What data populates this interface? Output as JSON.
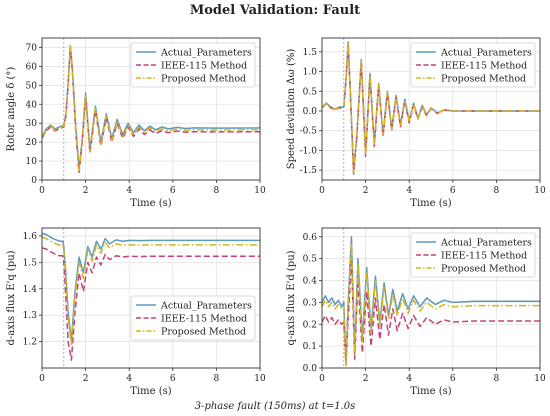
{
  "title": "Model Validation: Fault",
  "caption": "3-phase fault (150ms) at t=1.0s",
  "colors": {
    "actual": "#5b9bbf",
    "ieee": "#c4427a",
    "proposed": "#d7b41c",
    "fault_line": "#8aa0c8"
  },
  "chart_data": [
    {
      "type": "line",
      "id": "rotor",
      "ylabel": "Rotor angle δ (°)",
      "xlabel": "Time (s)",
      "xlim": [
        0,
        10
      ],
      "ylim": [
        0,
        75
      ],
      "xticks": [
        0,
        2,
        4,
        6,
        8,
        10
      ],
      "yticks": [
        0,
        10,
        20,
        30,
        40,
        50,
        60,
        70
      ],
      "grid": true,
      "legend_position": "top-right",
      "fault_time": 1.0,
      "series": [
        {
          "name": "Actual_Parameters",
          "style": "solid",
          "color": "actual",
          "x": [
            0,
            0.2,
            0.4,
            0.6,
            0.8,
            1.0,
            1.1,
            1.2,
            1.3,
            1.4,
            1.55,
            1.7,
            1.85,
            2.0,
            2.2,
            2.45,
            2.7,
            2.95,
            3.2,
            3.45,
            3.7,
            3.95,
            4.2,
            4.45,
            4.7,
            4.95,
            5.2,
            5.5,
            5.8,
            6.2,
            6.6,
            7.0,
            8.0,
            10.0
          ],
          "y": [
            23,
            27,
            29,
            27,
            28,
            29,
            35,
            52,
            71,
            58,
            28,
            6,
            22,
            46,
            16,
            39,
            20,
            35,
            22,
            32,
            24,
            30,
            25,
            29,
            26,
            28.5,
            26.5,
            28,
            27,
            27.8,
            27.2,
            27.5,
            27.4,
            27.5
          ]
        },
        {
          "name": "IEEE-115 Method",
          "style": "dashed",
          "color": "ieee",
          "x": [
            0,
            0.2,
            0.4,
            0.6,
            0.8,
            1.0,
            1.1,
            1.2,
            1.3,
            1.4,
            1.55,
            1.7,
            1.85,
            2.0,
            2.2,
            2.45,
            2.7,
            2.95,
            3.2,
            3.45,
            3.7,
            3.95,
            4.2,
            4.45,
            4.7,
            4.95,
            5.2,
            5.5,
            5.8,
            6.2,
            6.6,
            7.0,
            8.0,
            10.0
          ],
          "y": [
            22,
            26,
            28,
            26,
            27,
            28,
            34,
            50,
            70,
            56,
            25,
            4,
            20,
            44,
            14,
            37,
            18,
            33,
            20,
            30,
            22,
            28,
            23,
            27,
            24,
            26.5,
            24.5,
            26,
            25,
            25.8,
            25.2,
            25.5,
            25.4,
            25.5
          ]
        },
        {
          "name": "Proposed Method",
          "style": "dashdot",
          "color": "proposed",
          "x": [
            0,
            0.2,
            0.4,
            0.6,
            0.8,
            1.0,
            1.1,
            1.2,
            1.3,
            1.4,
            1.55,
            1.7,
            1.85,
            2.0,
            2.2,
            2.45,
            2.7,
            2.95,
            3.2,
            3.45,
            3.7,
            3.95,
            4.2,
            4.45,
            4.7,
            4.95,
            5.2,
            5.5,
            5.8,
            6.2,
            6.6,
            7.0,
            8.0,
            10.0
          ],
          "y": [
            22.5,
            26.5,
            28.5,
            26.5,
            27.5,
            28.5,
            34.5,
            51,
            70.5,
            57,
            26.5,
            5,
            21,
            45,
            15,
            38,
            19,
            34,
            21,
            31,
            23,
            29,
            24,
            28,
            25,
            27.5,
            25.5,
            27,
            26,
            26.8,
            26.2,
            26.5,
            26.4,
            26.5
          ]
        }
      ]
    },
    {
      "type": "line",
      "id": "speed",
      "ylabel": "Speed deviation Δω (%)",
      "xlabel": "Time (s)",
      "xlim": [
        0,
        10
      ],
      "ylim": [
        -1.75,
        1.85
      ],
      "xticks": [
        0,
        2,
        4,
        6,
        8,
        10
      ],
      "yticks": [
        -1.5,
        -1.0,
        -0.5,
        0.0,
        0.5,
        1.0,
        1.5
      ],
      "grid": true,
      "legend_position": "top-right",
      "fault_time": 1.0,
      "series": [
        {
          "name": "Actual_Parameters",
          "style": "solid",
          "color": "actual",
          "x": [
            0,
            0.2,
            0.4,
            0.6,
            0.8,
            1.0,
            1.1,
            1.2,
            1.3,
            1.45,
            1.6,
            1.8,
            2.0,
            2.2,
            2.4,
            2.6,
            2.8,
            3.0,
            3.2,
            3.4,
            3.6,
            3.8,
            4.0,
            4.2,
            4.4,
            4.6,
            4.8,
            5.0,
            5.3,
            5.6,
            6.0,
            7.0,
            10.0
          ],
          "y": [
            0.1,
            0.2,
            0.1,
            0.05,
            0.1,
            0.1,
            0.8,
            1.75,
            0.5,
            -1.55,
            -0.6,
            1.3,
            -1.1,
            0.95,
            -0.85,
            0.7,
            -0.6,
            0.5,
            -0.45,
            0.4,
            -0.35,
            0.3,
            -0.25,
            0.2,
            -0.18,
            0.14,
            -0.1,
            0.08,
            -0.05,
            0.03,
            0.0,
            0.0,
            0.0
          ]
        },
        {
          "name": "IEEE-115 Method",
          "style": "dashed",
          "color": "ieee",
          "x": [
            0,
            0.2,
            0.4,
            0.6,
            0.8,
            1.0,
            1.1,
            1.2,
            1.3,
            1.45,
            1.6,
            1.8,
            2.0,
            2.2,
            2.4,
            2.6,
            2.8,
            3.0,
            3.2,
            3.4,
            3.6,
            3.8,
            4.0,
            4.2,
            4.4,
            4.6,
            4.8,
            5.0,
            5.3,
            5.6,
            6.0,
            7.0,
            10.0
          ],
          "y": [
            0.08,
            0.18,
            0.08,
            0.03,
            0.08,
            0.08,
            0.75,
            1.7,
            0.45,
            -1.6,
            -0.65,
            1.25,
            -1.15,
            0.9,
            -0.9,
            0.65,
            -0.65,
            0.45,
            -0.5,
            0.35,
            -0.4,
            0.25,
            -0.3,
            0.15,
            -0.2,
            0.1,
            -0.12,
            0.06,
            -0.06,
            0.02,
            0.0,
            0.0,
            0.0
          ]
        },
        {
          "name": "Proposed Method",
          "style": "dashdot",
          "color": "proposed",
          "x": [
            0,
            0.2,
            0.4,
            0.6,
            0.8,
            1.0,
            1.1,
            1.2,
            1.3,
            1.45,
            1.6,
            1.8,
            2.0,
            2.2,
            2.4,
            2.6,
            2.8,
            3.0,
            3.2,
            3.4,
            3.6,
            3.8,
            4.0,
            4.2,
            4.4,
            4.6,
            4.8,
            5.0,
            5.3,
            5.6,
            6.0,
            7.0,
            10.0
          ],
          "y": [
            0.09,
            0.19,
            0.09,
            0.04,
            0.09,
            0.09,
            0.78,
            1.72,
            0.48,
            -1.57,
            -0.62,
            1.28,
            -1.12,
            0.92,
            -0.87,
            0.68,
            -0.62,
            0.48,
            -0.47,
            0.38,
            -0.37,
            0.28,
            -0.27,
            0.18,
            -0.19,
            0.12,
            -0.11,
            0.07,
            -0.05,
            0.02,
            0.0,
            0.0,
            0.0
          ]
        }
      ]
    },
    {
      "type": "line",
      "id": "dflux",
      "ylabel": "d-axis flux E'q (pu)",
      "xlabel": "Time (s)",
      "xlim": [
        0,
        10
      ],
      "ylim": [
        1.1,
        1.63
      ],
      "xticks": [
        0,
        2,
        4,
        6,
        8,
        10
      ],
      "yticks": [
        1.2,
        1.3,
        1.4,
        1.5,
        1.6
      ],
      "grid": true,
      "legend_position": "center-right",
      "fault_time": 1.0,
      "series": [
        {
          "name": "Actual_Parameters",
          "style": "solid",
          "color": "actual",
          "x": [
            0,
            0.2,
            0.5,
            0.8,
            0.95,
            1.0,
            1.1,
            1.2,
            1.35,
            1.5,
            1.7,
            1.9,
            2.1,
            2.3,
            2.5,
            2.7,
            2.9,
            3.1,
            3.4,
            3.7,
            4.0,
            4.5,
            5.0,
            6.0,
            10.0
          ],
          "y": [
            1.61,
            1.605,
            1.59,
            1.58,
            1.58,
            1.56,
            1.45,
            1.31,
            1.2,
            1.38,
            1.52,
            1.46,
            1.56,
            1.52,
            1.58,
            1.55,
            1.59,
            1.57,
            1.585,
            1.58,
            1.583,
            1.582,
            1.583,
            1.583,
            1.583
          ]
        },
        {
          "name": "IEEE-115 Method",
          "style": "dashed",
          "color": "ieee",
          "x": [
            0,
            0.2,
            0.5,
            0.8,
            0.95,
            1.0,
            1.1,
            1.2,
            1.35,
            1.5,
            1.7,
            1.9,
            2.1,
            2.3,
            2.5,
            2.7,
            2.9,
            3.1,
            3.4,
            3.7,
            4.0,
            4.5,
            5.0,
            6.0,
            10.0
          ],
          "y": [
            1.555,
            1.55,
            1.535,
            1.525,
            1.525,
            1.5,
            1.36,
            1.2,
            1.13,
            1.3,
            1.46,
            1.39,
            1.5,
            1.46,
            1.52,
            1.49,
            1.53,
            1.51,
            1.525,
            1.52,
            1.523,
            1.522,
            1.523,
            1.523,
            1.523
          ]
        },
        {
          "name": "Proposed Method",
          "style": "dashdot",
          "color": "proposed",
          "x": [
            0,
            0.2,
            0.5,
            0.8,
            0.95,
            1.0,
            1.1,
            1.2,
            1.35,
            1.5,
            1.7,
            1.9,
            2.1,
            2.3,
            2.5,
            2.7,
            2.9,
            3.1,
            3.4,
            3.7,
            4.0,
            4.5,
            5.0,
            6.0,
            10.0
          ],
          "y": [
            1.595,
            1.59,
            1.575,
            1.565,
            1.565,
            1.545,
            1.43,
            1.29,
            1.19,
            1.36,
            1.5,
            1.44,
            1.545,
            1.505,
            1.565,
            1.535,
            1.575,
            1.555,
            1.57,
            1.565,
            1.566,
            1.565,
            1.566,
            1.566,
            1.566
          ]
        }
      ]
    },
    {
      "type": "line",
      "id": "qflux",
      "ylabel": "q-axis flux E'd (pu)",
      "xlabel": "Time (s)",
      "xlim": [
        0,
        10
      ],
      "ylim": [
        0,
        0.64
      ],
      "xticks": [
        0,
        2,
        4,
        6,
        8,
        10
      ],
      "yticks": [
        0.0,
        0.1,
        0.2,
        0.3,
        0.4,
        0.5,
        0.6
      ],
      "grid": true,
      "legend_position": "top-right",
      "fault_time": 1.0,
      "series": [
        {
          "name": "Actual_Parameters",
          "style": "solid",
          "color": "actual",
          "x": [
            0,
            0.15,
            0.3,
            0.45,
            0.6,
            0.75,
            0.9,
            1.0,
            1.1,
            1.2,
            1.35,
            1.5,
            1.65,
            1.85,
            2.05,
            2.25,
            2.45,
            2.65,
            2.85,
            3.05,
            3.25,
            3.45,
            3.7,
            3.95,
            4.2,
            4.5,
            4.8,
            5.2,
            5.6,
            6.0,
            7.0,
            10.0
          ],
          "y": [
            0.3,
            0.33,
            0.3,
            0.32,
            0.29,
            0.31,
            0.28,
            0.3,
            0.02,
            0.3,
            0.6,
            0.08,
            0.5,
            0.14,
            0.46,
            0.18,
            0.42,
            0.21,
            0.39,
            0.24,
            0.36,
            0.26,
            0.34,
            0.27,
            0.33,
            0.28,
            0.32,
            0.29,
            0.31,
            0.3,
            0.305,
            0.305
          ]
        },
        {
          "name": "IEEE-115 Method",
          "style": "dashed",
          "color": "ieee",
          "x": [
            0,
            0.15,
            0.3,
            0.45,
            0.6,
            0.75,
            0.9,
            1.0,
            1.1,
            1.2,
            1.35,
            1.5,
            1.65,
            1.85,
            2.05,
            2.25,
            2.45,
            2.65,
            2.85,
            3.05,
            3.25,
            3.45,
            3.7,
            3.95,
            4.2,
            4.5,
            4.8,
            5.2,
            5.6,
            6.0,
            7.0,
            10.0
          ],
          "y": [
            0.21,
            0.24,
            0.21,
            0.23,
            0.2,
            0.22,
            0.2,
            0.21,
            0.02,
            0.22,
            0.5,
            0.04,
            0.4,
            0.07,
            0.35,
            0.1,
            0.32,
            0.13,
            0.29,
            0.15,
            0.27,
            0.17,
            0.25,
            0.18,
            0.24,
            0.19,
            0.23,
            0.2,
            0.22,
            0.21,
            0.215,
            0.215
          ]
        },
        {
          "name": "Proposed Method",
          "style": "dashdot",
          "color": "proposed",
          "x": [
            0,
            0.15,
            0.3,
            0.45,
            0.6,
            0.75,
            0.9,
            1.0,
            1.1,
            1.2,
            1.35,
            1.5,
            1.65,
            1.85,
            2.05,
            2.25,
            2.45,
            2.65,
            2.85,
            3.05,
            3.25,
            3.45,
            3.7,
            3.95,
            4.2,
            4.5,
            4.8,
            5.2,
            5.6,
            6.0,
            7.0,
            10.0
          ],
          "y": [
            0.28,
            0.31,
            0.28,
            0.3,
            0.27,
            0.29,
            0.27,
            0.28,
            0.01,
            0.28,
            0.57,
            0.06,
            0.48,
            0.12,
            0.44,
            0.16,
            0.4,
            0.19,
            0.37,
            0.22,
            0.34,
            0.24,
            0.32,
            0.25,
            0.31,
            0.26,
            0.3,
            0.27,
            0.29,
            0.28,
            0.285,
            0.285
          ]
        }
      ]
    }
  ]
}
